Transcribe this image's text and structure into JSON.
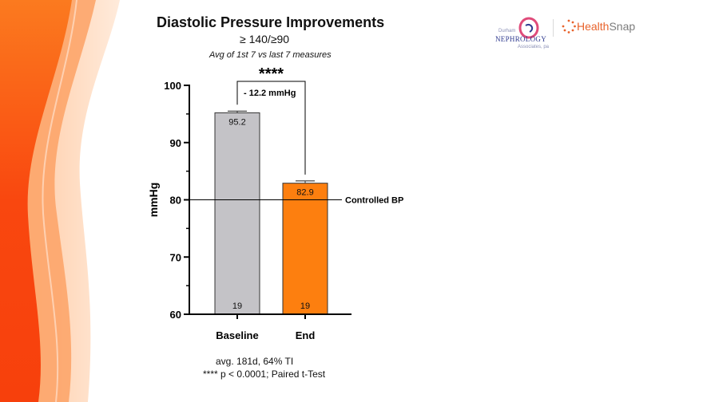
{
  "header": {
    "title": "Diastolic Pressure Improvements",
    "subtitle": "≥ 140/≥90",
    "subtitle2": "Avg of 1st 7 vs last 7 measures"
  },
  "logos": {
    "nephrology_small_top": "Durham",
    "nephrology_name": "NEPHROLOGY",
    "nephrology_small_bottom": "Associates, pa",
    "healthsnap_part1": "Health",
    "healthsnap_part2": "Snap"
  },
  "footer": {
    "line1": "avg. 181d,  64% TI",
    "line2": "**** p < 0.0001; Paired t-Test"
  },
  "colors": {
    "baseline_bar": "#c4c3c7",
    "end_bar": "#fd7f0f",
    "left_band_dark": "#f9470f",
    "left_band_light": "#ffc7a3",
    "healthsnap_orange": "#e8632c"
  },
  "chart_data": {
    "type": "bar",
    "categories": [
      "Baseline",
      "End"
    ],
    "values": [
      95.2,
      82.9
    ],
    "value_labels": [
      "95.2",
      "82.9"
    ],
    "error": [
      0.3,
      0.4
    ],
    "n_labels": [
      "19",
      "19"
    ],
    "ylabel": "mmHg",
    "ylim": [
      60,
      100
    ],
    "yticks": [
      60,
      70,
      80,
      90,
      100
    ],
    "reference_line": {
      "value": 80,
      "label": "Controlled BP"
    },
    "significance": {
      "stars": "****",
      "label": "- 12.2 mmHg"
    },
    "grid": false,
    "legend": "none"
  }
}
